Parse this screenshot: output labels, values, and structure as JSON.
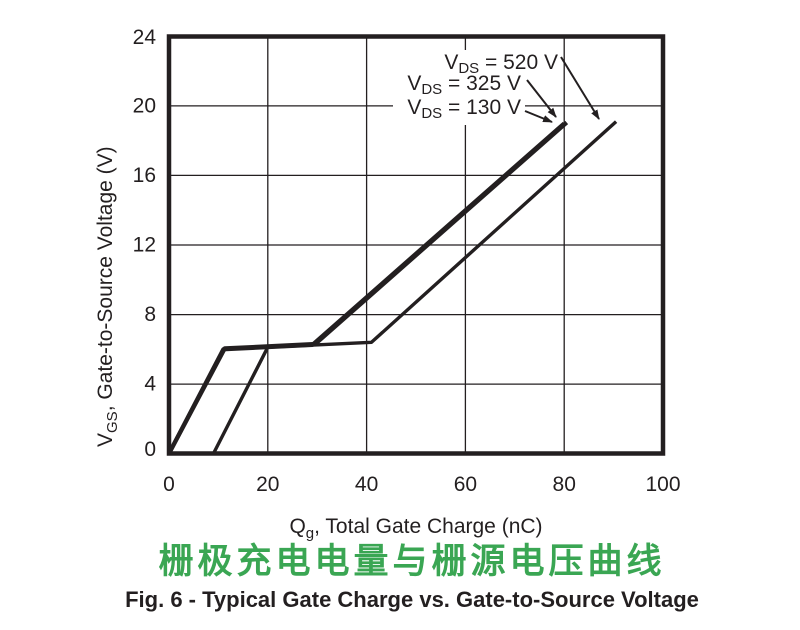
{
  "figure": {
    "title_cn": "栅极充电电量与栅源电压曲线",
    "caption": "Fig. 6 - Typical Gate Charge vs. Gate-to-Source Voltage"
  },
  "colors": {
    "line": "#231f20",
    "title_green": "#3aa653",
    "background": "#ffffff"
  },
  "chart_data": {
    "type": "line",
    "title": "",
    "xlabel": {
      "main": "Q",
      "sub": "g",
      "rest": ", Total Gate Charge (nC)"
    },
    "ylabel": {
      "main": "V",
      "sub": "GS",
      "rest": ", Gate-to-Source Voltage (V)"
    },
    "xlim": [
      0,
      100
    ],
    "ylim": [
      0,
      24
    ],
    "grid": true,
    "xticks": {
      "values": [
        0,
        20,
        40,
        60,
        80,
        100
      ],
      "labels": [
        "0",
        "20",
        "40",
        "60",
        "80",
        "100"
      ]
    },
    "yticks": {
      "values": [
        24,
        20,
        16,
        12,
        8,
        4,
        0
      ],
      "labels": [
        "24",
        "20",
        "16",
        "12",
        "8",
        "4",
        "0"
      ]
    },
    "series": [
      {
        "name": "V_DS = 130 V",
        "stroke_width": 4.2,
        "points": [
          [
            0,
            0
          ],
          [
            11,
            6.0
          ],
          [
            29,
            6.25
          ],
          [
            80,
            19.0
          ]
        ]
      },
      {
        "name": "V_DS = 325 V",
        "stroke_width": 4.2,
        "points": [
          [
            0,
            0
          ],
          [
            11.3,
            6.05
          ],
          [
            29.6,
            6.3
          ],
          [
            80.5,
            19.05
          ]
        ]
      },
      {
        "name": "V_DS = 520 V",
        "stroke_width": 3.4,
        "points": [
          [
            9,
            0
          ],
          [
            20,
            6.12
          ],
          [
            41,
            6.4
          ],
          [
            90.5,
            19.1
          ]
        ]
      }
    ],
    "annotations": [
      {
        "v": "V",
        "sub": "DS",
        "rest": " = 520 V"
      },
      {
        "v": "V",
        "sub": "DS",
        "rest": " = 325 V"
      },
      {
        "v": "V",
        "sub": "DS",
        "rest": " = 130 V"
      }
    ]
  }
}
